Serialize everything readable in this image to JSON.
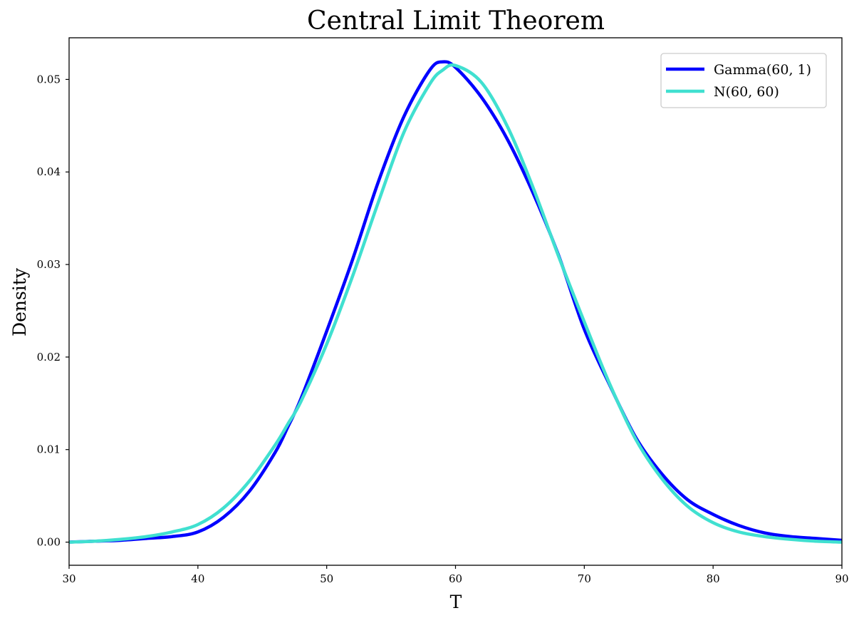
{
  "chart_data": {
    "type": "line",
    "title": "Central Limit Theorem",
    "xlabel": "T",
    "ylabel": "Density",
    "xlim": [
      30,
      90
    ],
    "ylim": [
      -0.0025,
      0.0545
    ],
    "x_ticks": [
      30,
      40,
      50,
      60,
      70,
      80,
      90
    ],
    "x_tick_labels": [
      "30",
      "40",
      "50",
      "60",
      "70",
      "80",
      "90"
    ],
    "y_ticks": [
      0.0,
      0.01,
      0.02,
      0.03,
      0.04,
      0.05
    ],
    "y_tick_labels": [
      "0.00",
      "0.01",
      "0.02",
      "0.03",
      "0.04",
      "0.05"
    ],
    "grid": false,
    "legend_position": "top-right",
    "x": [
      30,
      32,
      34,
      36,
      38,
      40,
      42,
      44,
      46,
      47,
      48,
      50,
      52,
      54,
      56,
      58,
      59,
      60,
      62,
      64,
      66,
      68,
      70,
      72,
      74,
      76,
      78,
      80,
      82,
      84,
      86,
      88,
      90
    ],
    "series": [
      {
        "name": "Gamma(60, 1)",
        "color": "#0000ff",
        "values": [
          0.0,
          0.0001,
          0.0002,
          0.0004,
          0.0006,
          0.0011,
          0.0027,
          0.0055,
          0.0097,
          0.0125,
          0.0155,
          0.0228,
          0.0305,
          0.0389,
          0.046,
          0.051,
          0.0519,
          0.0513,
          0.0481,
          0.0436,
          0.0378,
          0.031,
          0.023,
          0.0169,
          0.0113,
          0.0074,
          0.0046,
          0.003,
          0.0018,
          0.001,
          0.0006,
          0.0004,
          0.0002
        ]
      },
      {
        "name": "N(60, 60)",
        "color": "#40e0d0",
        "values": [
          0.0,
          0.0001,
          0.0003,
          0.0006,
          0.0011,
          0.0019,
          0.0037,
          0.0066,
          0.0105,
          0.0128,
          0.0152,
          0.0214,
          0.0287,
          0.0367,
          0.0443,
          0.0495,
          0.051,
          0.0515,
          0.0497,
          0.045,
          0.0384,
          0.0309,
          0.0238,
          0.017,
          0.0111,
          0.0069,
          0.0039,
          0.0021,
          0.0011,
          0.0006,
          0.0003,
          0.0001,
          0.0
        ]
      }
    ]
  }
}
